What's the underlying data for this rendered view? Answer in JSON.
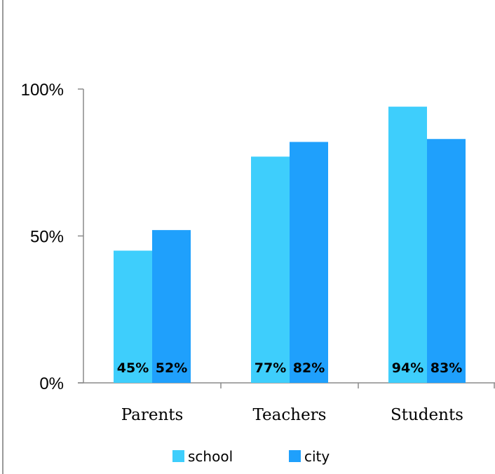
{
  "chart_data": {
    "type": "bar",
    "title": "",
    "categories": [
      "Parents",
      "Teachers",
      "Students"
    ],
    "series": [
      {
        "name": "school",
        "values": [
          45,
          77,
          94
        ],
        "color": "#3ECEFC"
      },
      {
        "name": "city",
        "values": [
          52,
          82,
          83
        ],
        "color": "#1FA0FC"
      }
    ],
    "data_labels": [
      [
        "45%",
        "77%",
        "94%"
      ],
      [
        "52%",
        "82%",
        "83%"
      ]
    ],
    "ylim": [
      0,
      100
    ],
    "yticks": [
      {
        "value": 0,
        "label": "0%"
      },
      {
        "value": 50,
        "label": "50%"
      },
      {
        "value": 100,
        "label": "100%"
      }
    ],
    "xlabel": "",
    "ylabel": "",
    "grid": false,
    "legend_position": "bottom"
  }
}
